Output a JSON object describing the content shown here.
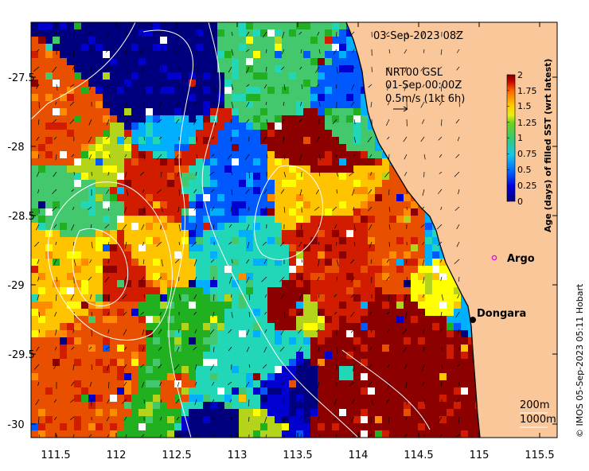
{
  "map": {
    "timestamp": "03-Sep-2023 08Z",
    "product_label": "NRT00 GSL",
    "product_date": "01-Sep 00:00Z",
    "vector_scale_label": "0.5m/s (1kt 6h)",
    "x_ticks": [
      "111.5",
      "112",
      "112.5",
      "113",
      "113.5",
      "114",
      "114.5",
      "115",
      "115.5"
    ],
    "y_ticks": [
      "-27.5",
      "-28",
      "-28.5",
      "-29",
      "-29.5",
      "-30"
    ],
    "lon_range": [
      111.3,
      115.65
    ],
    "lat_range": [
      -30.1,
      -27.1
    ],
    "places": [
      {
        "name": "Argo",
        "marker": "magenta-ring"
      },
      {
        "name": "Dongara",
        "marker": "black-dot"
      }
    ],
    "isobath_labels": [
      "200m",
      "1000m"
    ],
    "credit": "© IMOS 05-Sep-2023 05:11 Hobart",
    "land_color": "#f9c79a",
    "coast_color": "#000000"
  },
  "colorbar": {
    "title": "Age (days) of filled SST (wrt latest)",
    "range": [
      0,
      2
    ],
    "ticks": [
      "2",
      "1.75",
      "1.5",
      "1.25",
      "1",
      "0.75",
      "0.5",
      "0.25",
      "0"
    ],
    "colors": [
      "#00007f",
      "#0000d0",
      "#0058ff",
      "#00b0ff",
      "#22d6b8",
      "#44c86e",
      "#20b020",
      "#b4d41c",
      "#ffff00",
      "#ffc400",
      "#ff8c00",
      "#e85000",
      "#d21c00",
      "#8c0000"
    ]
  }
}
